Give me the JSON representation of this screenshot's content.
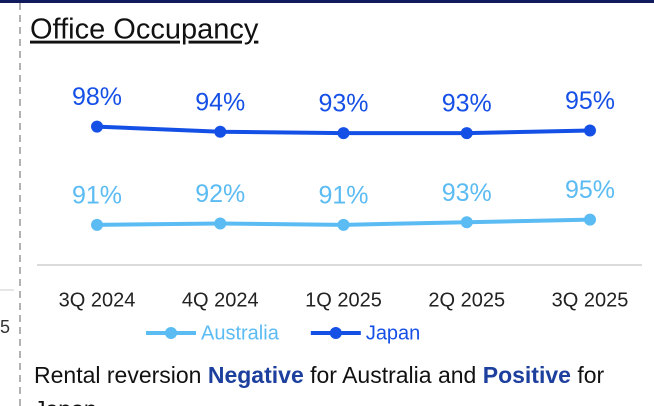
{
  "chart_data": {
    "type": "line",
    "title": "Office Occupancy",
    "categories": [
      "3Q 2024",
      "4Q 2024",
      "1Q 2025",
      "2Q 2025",
      "3Q 2025"
    ],
    "series": [
      {
        "name": "Australia",
        "color": "#5bbbf3",
        "values": [
          91,
          92,
          91,
          93,
          95
        ],
        "value_labels": [
          "91%",
          "92%",
          "91%",
          "93%",
          "95%"
        ]
      },
      {
        "name": "Japan",
        "color": "#1550e6",
        "values": [
          98,
          94,
          93,
          93,
          95
        ],
        "value_labels": [
          "98%",
          "94%",
          "93%",
          "93%",
          "95%"
        ]
      }
    ]
  },
  "note": {
    "parts": [
      "Rental reversion ",
      "Negative",
      " for Australia and ",
      "Positive",
      " for Japan"
    ]
  },
  "fragment": "5"
}
